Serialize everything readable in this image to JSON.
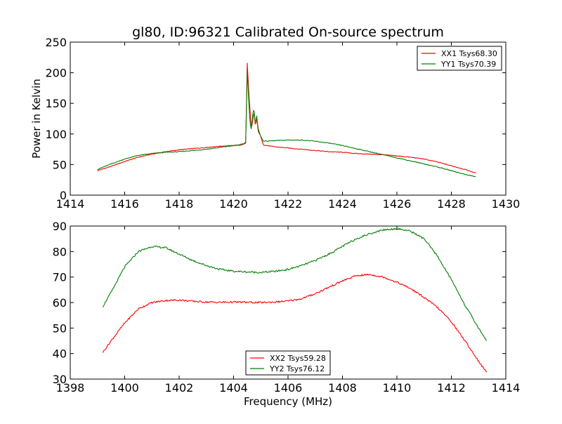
{
  "figure_title": "gl80, ID:96321 Calibrated On-source spectrum",
  "chart_data": [
    {
      "type": "line",
      "title": "gl80, ID:96321 Calibrated On-source spectrum",
      "xlabel": "",
      "ylabel": "Power in Kelvin",
      "xlim": [
        1414,
        1430
      ],
      "ylim": [
        0,
        250
      ],
      "xticks": [
        "1414",
        "1416",
        "1418",
        "1420",
        "1422",
        "1424",
        "1426",
        "1428",
        "1430"
      ],
      "yticks": [
        "0",
        "50",
        "100",
        "150",
        "200",
        "250"
      ],
      "grid": false,
      "legend_position": "top-right",
      "series": [
        {
          "name": "XX1 Tsys68.30",
          "color": "#ff0000",
          "x": [
            1415.0,
            1415.5,
            1416.0,
            1416.5,
            1417.0,
            1417.5,
            1418.0,
            1418.5,
            1419.0,
            1419.5,
            1420.0,
            1420.3,
            1420.45,
            1420.5,
            1420.55,
            1420.6,
            1420.65,
            1420.7,
            1420.75,
            1420.8,
            1420.85,
            1420.9,
            1420.95,
            1421.0,
            1421.1,
            1421.5,
            1422.0,
            1422.5,
            1423.0,
            1423.5,
            1424.0,
            1424.5,
            1425.0,
            1425.5,
            1426.0,
            1426.5,
            1427.0,
            1427.5,
            1428.0,
            1428.5,
            1428.9
          ],
          "y": [
            40,
            47,
            55,
            62,
            67,
            71,
            74,
            76,
            78,
            80,
            81,
            82,
            85,
            218,
            175,
            140,
            108,
            120,
            138,
            112,
            125,
            110,
            102,
            95,
            82,
            79,
            77,
            75,
            73,
            71,
            70,
            68,
            67,
            66,
            64,
            62,
            59,
            54,
            48,
            42,
            36
          ]
        },
        {
          "name": "YY1 Tsys70.39",
          "color": "#008000",
          "x": [
            1415.0,
            1415.5,
            1416.0,
            1416.5,
            1417.0,
            1417.5,
            1418.0,
            1418.5,
            1419.0,
            1419.5,
            1420.0,
            1420.3,
            1420.45,
            1420.5,
            1420.55,
            1420.6,
            1420.65,
            1420.7,
            1420.75,
            1420.8,
            1420.85,
            1420.9,
            1420.95,
            1421.0,
            1421.1,
            1421.5,
            1422.0,
            1422.5,
            1423.0,
            1423.5,
            1424.0,
            1424.5,
            1425.0,
            1425.5,
            1426.0,
            1426.5,
            1427.0,
            1427.5,
            1428.0,
            1428.5,
            1428.9
          ],
          "y": [
            42,
            51,
            59,
            65,
            68,
            70,
            71,
            73,
            75,
            78,
            81,
            83,
            86,
            205,
            160,
            120,
            108,
            130,
            142,
            115,
            130,
            105,
            100,
            96,
            88,
            89,
            90,
            90,
            88,
            85,
            81,
            76,
            71,
            66,
            61,
            56,
            51,
            46,
            40,
            34,
            30
          ]
        }
      ]
    },
    {
      "type": "line",
      "title": "",
      "xlabel": "Frequency (MHz)",
      "ylabel": "",
      "xlim": [
        1398,
        1414
      ],
      "ylim": [
        30,
        90
      ],
      "xticks": [
        "1398",
        "1400",
        "1402",
        "1404",
        "1406",
        "1408",
        "1410",
        "1412",
        "1414"
      ],
      "yticks": [
        "30",
        "40",
        "50",
        "60",
        "70",
        "80",
        "90"
      ],
      "grid": false,
      "legend_position": "bottom-center",
      "series": [
        {
          "name": "XX2 Tsys59.28",
          "color": "#ff0000",
          "x": [
            1399.2,
            1399.5,
            1400.0,
            1400.5,
            1401.0,
            1401.5,
            1402.0,
            1402.5,
            1403.0,
            1403.5,
            1404.0,
            1404.5,
            1405.0,
            1405.5,
            1406.0,
            1406.5,
            1407.0,
            1407.5,
            1408.0,
            1408.5,
            1409.0,
            1409.5,
            1410.0,
            1410.5,
            1411.0,
            1411.5,
            1412.0,
            1412.5,
            1413.0,
            1413.3
          ],
          "y": [
            40.5,
            45,
            52,
            57.5,
            60,
            60.8,
            61,
            60.5,
            60.2,
            60.1,
            60.2,
            60.1,
            60,
            60.2,
            60.6,
            61.5,
            63.5,
            66,
            68.5,
            70.5,
            71,
            70,
            68,
            65.5,
            62,
            58,
            52.5,
            45,
            37,
            32.5
          ]
        },
        {
          "name": "YY2 Tsys76.12",
          "color": "#008000",
          "x": [
            1399.2,
            1399.5,
            1400.0,
            1400.5,
            1401.0,
            1401.5,
            1402.0,
            1402.5,
            1403.0,
            1403.5,
            1404.0,
            1404.5,
            1405.0,
            1405.5,
            1406.0,
            1406.5,
            1407.0,
            1407.5,
            1408.0,
            1408.5,
            1409.0,
            1409.5,
            1410.0,
            1410.5,
            1411.0,
            1411.5,
            1412.0,
            1412.5,
            1413.0,
            1413.3
          ],
          "y": [
            58.5,
            64,
            74,
            80,
            82,
            81.5,
            79,
            76.5,
            74.5,
            73,
            72.3,
            72,
            71.8,
            72.2,
            73,
            74.5,
            76.5,
            79,
            82,
            85,
            87,
            88.5,
            89,
            88,
            85,
            78,
            69,
            59,
            50,
            45
          ]
        }
      ]
    }
  ]
}
